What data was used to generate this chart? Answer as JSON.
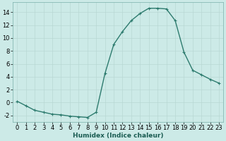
{
  "x": [
    0,
    1,
    2,
    3,
    4,
    5,
    6,
    7,
    8,
    9,
    10,
    11,
    12,
    13,
    14,
    15,
    16,
    17,
    18,
    19,
    20,
    21,
    22,
    23
  ],
  "y": [
    0.2,
    -0.5,
    -1.2,
    -1.5,
    -1.8,
    -1.9,
    -2.1,
    -2.2,
    -2.3,
    -1.5,
    4.5,
    9.0,
    11.0,
    12.7,
    13.8,
    14.6,
    14.6,
    14.5,
    12.7,
    7.8,
    5.0,
    4.3,
    3.6,
    3.0
  ],
  "line_color": "#2d7b6e",
  "marker": "+",
  "marker_size": 3.5,
  "marker_color": "#2d7b6e",
  "bg_color": "#cceae7",
  "grid_color": "#b8d8d4",
  "xlabel": "Humidex (Indice chaleur)",
  "ylim": [
    -3,
    15.5
  ],
  "xlim": [
    -0.5,
    23.5
  ],
  "yticks": [
    -2,
    0,
    2,
    4,
    6,
    8,
    10,
    12,
    14
  ],
  "xticks": [
    0,
    1,
    2,
    3,
    4,
    5,
    6,
    7,
    8,
    9,
    10,
    11,
    12,
    13,
    14,
    15,
    16,
    17,
    18,
    19,
    20,
    21,
    22,
    23
  ],
  "xlabel_fontsize": 6.5,
  "tick_fontsize": 6.0,
  "line_width": 1.0
}
